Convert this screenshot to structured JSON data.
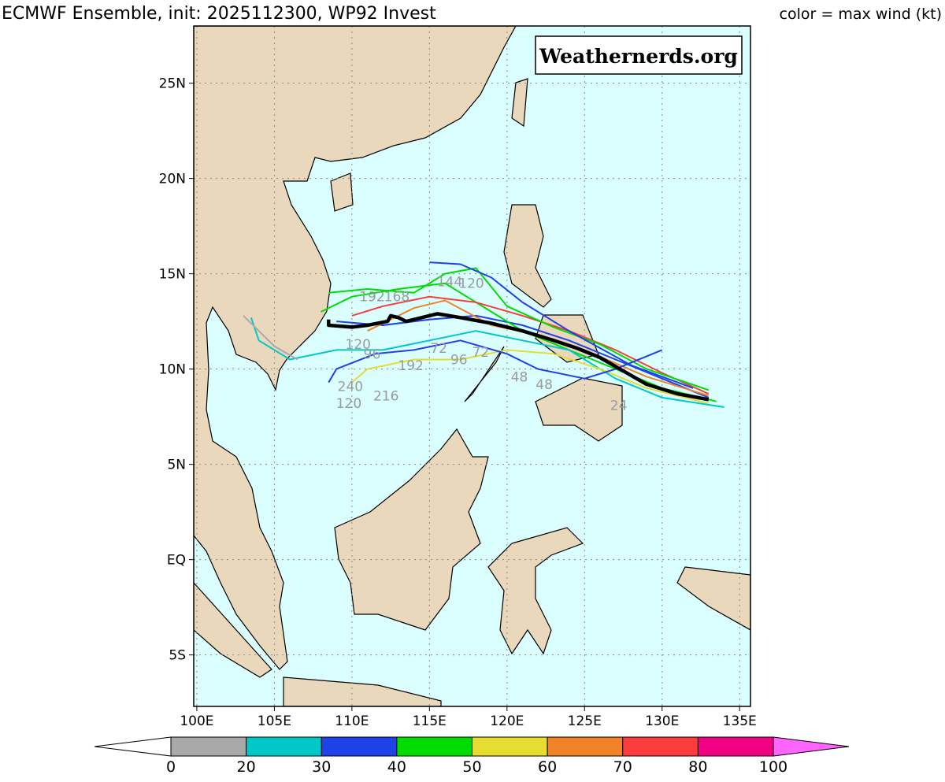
{
  "header": {
    "title": "ECMWF Ensemble, init: 2025112300, WP92 Invest",
    "legend_note": "color = max wind (kt)"
  },
  "watermark": "Weathernerds.org",
  "map": {
    "lonlim": [
      99.8,
      135.7
    ],
    "latlim": [
      -7.7,
      28.0
    ],
    "lon_ticks": [
      {
        "value": 100,
        "label": "100E"
      },
      {
        "value": 105,
        "label": "105E"
      },
      {
        "value": 110,
        "label": "110E"
      },
      {
        "value": 115,
        "label": "115E"
      },
      {
        "value": 120,
        "label": "120E"
      },
      {
        "value": 125,
        "label": "125E"
      },
      {
        "value": 130,
        "label": "130E"
      },
      {
        "value": 135,
        "label": "135E"
      }
    ],
    "lat_ticks": [
      {
        "value": 25,
        "label": "25N"
      },
      {
        "value": 20,
        "label": "20N"
      },
      {
        "value": 15,
        "label": "15N"
      },
      {
        "value": 10,
        "label": "10N"
      },
      {
        "value": 5,
        "label": "5N"
      },
      {
        "value": 0,
        "label": "EQ"
      },
      {
        "value": -5,
        "label": "5S"
      }
    ],
    "land_color": "#ead8bc",
    "ocean_color": "#dbffff"
  },
  "tracks": {
    "mean": {
      "color": "#000000",
      "lon": [
        133.0,
        131.0,
        129.0,
        127.5,
        126.0,
        124.5,
        123.0,
        121.0,
        119.0,
        117.0,
        115.5,
        114.5,
        113.5,
        113.0,
        112.5,
        112.3,
        111.0,
        110.0,
        108.5,
        108.5
      ],
      "lat": [
        8.4,
        8.7,
        9.2,
        9.9,
        10.6,
        11.1,
        11.5,
        12.0,
        12.4,
        12.7,
        12.9,
        12.7,
        12.5,
        12.7,
        12.8,
        12.5,
        12.3,
        12.2,
        12.3,
        12.6
      ]
    },
    "members": [
      {
        "color": "#2040e8",
        "lon": [
          133,
          130,
          127,
          124,
          121,
          118,
          115,
          112,
          109
        ],
        "lat": [
          8.5,
          9.5,
          10.5,
          11.5,
          12.3,
          12.8,
          12.6,
          12.3,
          12.5
        ]
      },
      {
        "color": "#00dc00",
        "lon": [
          133.5,
          130,
          127,
          124,
          121,
          118,
          116,
          113,
          110,
          108
        ],
        "lat": [
          8.3,
          9,
          10,
          11,
          12,
          13.5,
          14.5,
          14.2,
          13.8,
          13
        ]
      },
      {
        "color": "#00c8c8",
        "lon": [
          134,
          130,
          127,
          124,
          121,
          118,
          115,
          112,
          109,
          106,
          104,
          103.5
        ],
        "lat": [
          8,
          8.5,
          9.5,
          11,
          11.5,
          12,
          11.5,
          11,
          11,
          10.5,
          11.5,
          12.7
        ]
      },
      {
        "color": "#fa3c3c",
        "lon": [
          133,
          130,
          127,
          124,
          121,
          118,
          115,
          112,
          110
        ],
        "lat": [
          8.7,
          9.8,
          11,
          12,
          12.8,
          13.5,
          13.8,
          13.3,
          12.8
        ]
      },
      {
        "color": "#e6dc32",
        "lon": [
          133,
          129,
          126,
          123,
          120,
          117,
          114,
          111,
          110
        ],
        "lat": [
          8.2,
          9,
          10,
          10.8,
          11,
          10.5,
          10.5,
          10,
          9.3
        ]
      },
      {
        "color": "#f08228",
        "lon": [
          133,
          129,
          125,
          122,
          119,
          116,
          114,
          111
        ],
        "lat": [
          8.6,
          9.6,
          11,
          11.8,
          12.3,
          13.6,
          13.2,
          12
        ]
      },
      {
        "color": "#00dc00",
        "lon": [
          133,
          129,
          126,
          123,
          120,
          118,
          116,
          114,
          111,
          108.5
        ],
        "lat": [
          8.9,
          10,
          11.3,
          12.2,
          13.3,
          15.3,
          15,
          14,
          14.2,
          14
        ]
      },
      {
        "color": "#2040e8",
        "lon": [
          132,
          128,
          124,
          121,
          119,
          117,
          115
        ],
        "lat": [
          9,
          10.2,
          12,
          13.5,
          14.8,
          15.5,
          15.6
        ]
      },
      {
        "color": "#a9a9a9",
        "lon": [
          103,
          104,
          105,
          106.5
        ],
        "lat": [
          12.8,
          12,
          11.2,
          10.5
        ]
      },
      {
        "color": "#2040e8",
        "lon": [
          130,
          127,
          125,
          122,
          120,
          117,
          114,
          111.5,
          109,
          108.5
        ],
        "lat": [
          11,
          10,
          9.5,
          10,
          10.8,
          11.5,
          11,
          10.8,
          10,
          9.3
        ]
      }
    ]
  },
  "hour_labels": [
    {
      "text": "192",
      "lon": 111.3,
      "lat": 13.8
    },
    {
      "text": "168",
      "lon": 112.9,
      "lat": 13.8
    },
    {
      "text": "144",
      "lon": 116.3,
      "lat": 14.6
    },
    {
      "text": "120",
      "lon": 117.7,
      "lat": 14.5
    },
    {
      "text": "120",
      "lon": 110.4,
      "lat": 11.3
    },
    {
      "text": "96",
      "lon": 111.3,
      "lat": 10.8
    },
    {
      "text": "192",
      "lon": 113.8,
      "lat": 10.2
    },
    {
      "text": "72",
      "lon": 115.6,
      "lat": 11.1
    },
    {
      "text": "96",
      "lon": 116.9,
      "lat": 10.5
    },
    {
      "text": "72",
      "lon": 118.3,
      "lat": 10.9
    },
    {
      "text": "48",
      "lon": 120.8,
      "lat": 9.6
    },
    {
      "text": "48",
      "lon": 122.4,
      "lat": 9.2
    },
    {
      "text": "24",
      "lon": 127.2,
      "lat": 8.1
    },
    {
      "text": "240",
      "lon": 109.9,
      "lat": 9.1
    },
    {
      "text": "216",
      "lon": 112.2,
      "lat": 8.6
    },
    {
      "text": "120",
      "lon": 109.8,
      "lat": 8.2
    }
  ],
  "colorbar": {
    "ticks": [
      0,
      20,
      30,
      40,
      50,
      60,
      70,
      80,
      100
    ],
    "colors": [
      "#a9a9a9",
      "#00c8c8",
      "#2040e8",
      "#00dc00",
      "#e6dc32",
      "#f08228",
      "#fa3c3c",
      "#f00082"
    ],
    "under_color": "#ffffff",
    "over_color": "#ff64ff"
  }
}
